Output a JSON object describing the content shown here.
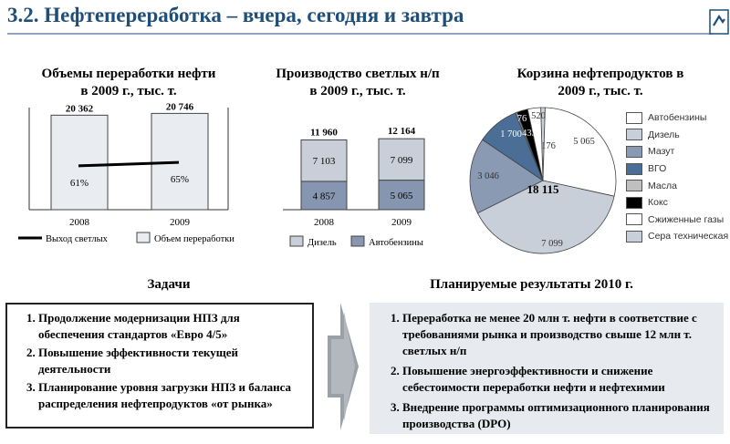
{
  "header": {
    "title": "3.2. Нефтепереработка – вчера, сегодня и завтра"
  },
  "colors": {
    "title": "#1f4e79",
    "light_bar": "#e9ecf1",
    "dark_bar": "#8696b0",
    "mid_bar": "#c9cfd9"
  },
  "chart_data": [
    {
      "type": "bar",
      "title": "Объемы переработки нефти в 2009 г., тыс. т.",
      "title_lines": [
        "Объемы переработки нефти",
        "в 2009 г., тыс. т."
      ],
      "categories": [
        "2008",
        "2009"
      ],
      "series": [
        {
          "name": "Объем переработки",
          "values": [
            20362,
            20746
          ],
          "labels": [
            "20 362",
            "20 746"
          ]
        },
        {
          "name": "Выход светлых",
          "values": [
            61,
            65
          ],
          "labels": [
            "61%",
            "65%"
          ],
          "unit": "%"
        }
      ],
      "legend": [
        "Выход светлых",
        "Объем переработки"
      ]
    },
    {
      "type": "bar",
      "stacked": true,
      "title": "Производство светлых н/п в 2009 г., тыс. т.",
      "title_lines": [
        "Производство светлых н/п",
        "в 2009 г., тыс. т."
      ],
      "categories": [
        "2008",
        "2009"
      ],
      "totals": [
        "11 960",
        "12 164"
      ],
      "series": [
        {
          "name": "Автобензины",
          "values": [
            4857,
            5065
          ],
          "labels": [
            "4 857",
            "5 065"
          ]
        },
        {
          "name": "Дизель",
          "values": [
            7103,
            7099
          ],
          "labels": [
            "7 103",
            "7 099"
          ]
        }
      ],
      "legend": [
        "Дизель",
        "Автобензины"
      ]
    },
    {
      "type": "pie",
      "title": "Корзина нефтепродуктов в 2009 г., тыс. т.",
      "title_lines": [
        "Корзина нефтепродуктов в",
        "2009 г., тыс. т."
      ],
      "total": "18 115",
      "slices": [
        {
          "name": "Автобензины",
          "value": 5065,
          "label": "5 065",
          "color": "#ffffff"
        },
        {
          "name": "Дизель",
          "value": 7099,
          "label": "7 099",
          "color": "#c9cfd9"
        },
        {
          "name": "Мазут",
          "value": 3046,
          "label": "3 046",
          "color": "#8a9ab3"
        },
        {
          "name": "ВГО",
          "value": 1700,
          "label": "1 700",
          "color": "#4a6e95"
        },
        {
          "name": "Масла",
          "value": 76,
          "label": "76",
          "color": "#8a8a8a"
        },
        {
          "name": "Кокс",
          "value": 433,
          "label": "433",
          "color": "#000000"
        },
        {
          "name": "Сжиженные газы",
          "value": 520,
          "label": "520",
          "color": "#ffffff"
        },
        {
          "name": "Сера техническая",
          "value": 176,
          "label": "176",
          "color": "#c9cfd9"
        }
      ],
      "legend": [
        "Автобензины",
        "Дизель",
        "Мазут",
        "ВГО",
        "Масла",
        "Кокс",
        "Сжиженные газы",
        "Сера техническая"
      ],
      "legend_colors": [
        "#ffffff",
        "#c9cfd9",
        "#8a9ab3",
        "#4a6e95",
        "#bfbfbf",
        "#000000",
        "#ffffff",
        "#c9cfd9"
      ]
    }
  ],
  "tasks": {
    "title": "Задачи",
    "items": [
      "Продолжение модернизации НПЗ для обеспечения стандартов «Евро 4/5»",
      "Повышение эффективности текущей деятельности",
      "Планирование уровня загрузки НПЗ и баланса распределения нефтепродуктов «от рынка»"
    ]
  },
  "results": {
    "title": "Планируемые результаты 2010 г.",
    "items": [
      "Переработка не менее 20 млн т.  нефти в соответствие с требованиями рынка и производство свыше 12 млн т. светлых н/п",
      "Повышение энергоэффективности и снижение себестоимости переработки нефти и нефтехимии",
      "Внедрение программы оптимизационного планирования производства (DPO)"
    ]
  }
}
